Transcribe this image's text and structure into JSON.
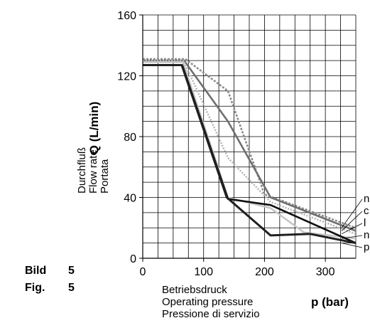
{
  "figure_label": {
    "de": "Bild",
    "en": "Fig.",
    "number": "5"
  },
  "chart_data": {
    "type": "line",
    "xlabel": "p (bar)",
    "xlabel_lines": [
      "Betriebsdruck",
      "Operating pressure",
      "Pressione di servizio"
    ],
    "ylabel": "Q (L/min)",
    "ylabel_lines": [
      "Durchfluß",
      "Flow rate",
      "Portata"
    ],
    "xlim": [
      0,
      350
    ],
    "ylim": [
      0,
      160
    ],
    "x_ticks": [
      "0",
      "100",
      "200",
      "300"
    ],
    "y_ticks": [
      "0",
      "40",
      "80",
      "120",
      "160"
    ],
    "grid": true,
    "legend": "right (clipped)",
    "series": [
      {
        "name": "n",
        "color": "#8a8a8a",
        "dash": "3,2",
        "points": [
          [
            0,
            131
          ],
          [
            70,
            131
          ],
          [
            140,
            110
          ],
          [
            200,
            42
          ],
          [
            350,
            20
          ]
        ]
      },
      {
        "name": "c",
        "color": "#6f6f6f",
        "dash": "",
        "points": [
          [
            0,
            130
          ],
          [
            68,
            130
          ],
          [
            140,
            90
          ],
          [
            210,
            40
          ],
          [
            350,
            18
          ]
        ]
      },
      {
        "name": "l",
        "color": "#b4b4b4",
        "dash": "2,2",
        "points": [
          [
            0,
            130
          ],
          [
            67,
            130
          ],
          [
            140,
            66
          ],
          [
            210,
            37
          ],
          [
            350,
            16
          ]
        ]
      },
      {
        "name": "n",
        "color": "#c6c6c6",
        "dash": "",
        "points": [
          [
            0,
            129
          ],
          [
            66,
            129
          ],
          [
            140,
            40
          ],
          [
            210,
            33
          ],
          [
            265,
            17
          ],
          [
            350,
            13
          ]
        ]
      },
      {
        "name": "p",
        "color": "#101010",
        "dash": "",
        "points": [
          [
            0,
            127
          ],
          [
            65,
            127
          ],
          [
            140,
            39
          ],
          [
            210,
            35
          ],
          [
            350,
            10
          ]
        ]
      },
      {
        "name": "",
        "color": "#202020",
        "dash": "",
        "points": [
          [
            0,
            127
          ],
          [
            64,
            127
          ],
          [
            138,
            40
          ],
          [
            210,
            15
          ],
          [
            275,
            16
          ],
          [
            350,
            10
          ]
        ]
      }
    ]
  }
}
